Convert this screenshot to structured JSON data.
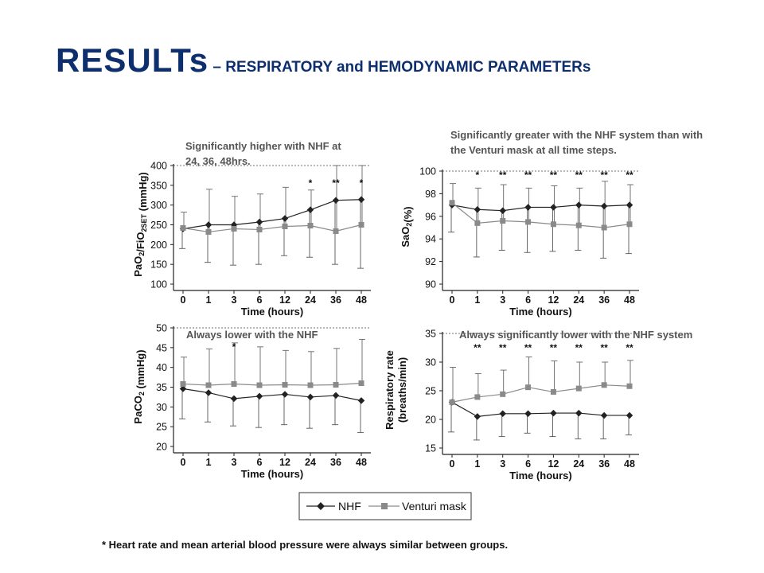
{
  "title": {
    "main": "RESULTs",
    "sub": " – RESPIRATORY and HEMODYNAMIC PARAMETERs"
  },
  "legend": {
    "nhf": "NHF",
    "venturi": "Venturi mask"
  },
  "footnote": "* Heart rate and mean arterial blood pressure were always similar between groups.",
  "colors": {
    "nhf": "#222222",
    "venturi": "#8a8a8a",
    "title": "#0d2f6e"
  },
  "chart_data": [
    {
      "type": "line",
      "ylabel_main": "PaO",
      "ylabel_sub1": "2",
      "ylabel_mid": "/FiO",
      "ylabel_sub2": "2SET",
      "ylabel_end": " (mmHg)",
      "xlabel": "Time (hours)",
      "categories": [
        "0",
        "1",
        "3",
        "6",
        "12",
        "24",
        "36",
        "48"
      ],
      "ylim": [
        100,
        400
      ],
      "yticks": [
        "100",
        "150",
        "200",
        "250",
        "300",
        "350",
        "400"
      ],
      "note_lines": [
        "Significantly higher with NHF at",
        "24, 36, 48hrs."
      ],
      "significance": [
        "",
        "",
        "",
        "",
        "",
        "*",
        "**",
        "*"
      ],
      "series": [
        {
          "name": "NHF",
          "values": [
            240,
            250,
            250,
            257,
            266,
            288,
            312,
            314
          ],
          "upper": [
            282,
            340,
            322,
            328,
            345,
            338,
            400,
            400
          ],
          "lower": [
            190,
            155,
            148,
            150,
            172,
            168,
            150,
            140
          ]
        },
        {
          "name": "Venturi mask",
          "values": [
            242,
            232,
            240,
            238,
            246,
            248,
            234,
            250
          ],
          "upper": [
            282,
            340,
            322,
            328,
            345,
            338,
            400,
            400
          ],
          "lower": [
            190,
            155,
            148,
            150,
            172,
            168,
            150,
            140
          ]
        }
      ]
    },
    {
      "type": "line",
      "ylabel_main": "SaO",
      "ylabel_sub1": "2",
      "ylabel_mid": "",
      "ylabel_sub2": "",
      "ylabel_end": "(%)",
      "xlabel": "Time (hours)",
      "categories": [
        "0",
        "1",
        "3",
        "6",
        "12",
        "24",
        "36",
        "48"
      ],
      "ylim": [
        90,
        100
      ],
      "yticks": [
        "90",
        "92",
        "94",
        "96",
        "98",
        "100"
      ],
      "note_lines": [
        "Significantly greater with the NHF system than with",
        "the Venturi mask at all time steps."
      ],
      "significance": [
        "",
        "*",
        "**",
        "**",
        "**",
        "**",
        "**",
        "**"
      ],
      "series": [
        {
          "name": "NHF",
          "values": [
            97.0,
            96.6,
            96.5,
            96.8,
            96.8,
            97.0,
            96.9,
            97.0
          ],
          "upper": [
            98.9,
            98.5,
            98.8,
            98.5,
            98.7,
            98.5,
            99.1,
            98.8
          ],
          "lower": [
            94.6,
            92.4,
            93.0,
            92.8,
            92.9,
            93.0,
            92.3,
            92.7
          ]
        },
        {
          "name": "Venturi mask",
          "values": [
            97.2,
            95.4,
            95.6,
            95.5,
            95.3,
            95.2,
            95.0,
            95.3
          ],
          "upper": [
            98.9,
            98.5,
            98.8,
            98.5,
            98.7,
            98.5,
            99.1,
            98.8
          ],
          "lower": [
            94.6,
            92.4,
            93.0,
            92.8,
            92.9,
            93.0,
            92.3,
            92.7
          ]
        }
      ]
    },
    {
      "type": "line",
      "ylabel_main": "PaCO",
      "ylabel_sub1": "2",
      "ylabel_mid": "",
      "ylabel_sub2": "",
      "ylabel_end": " (mmHg)",
      "xlabel": "Time (hours)",
      "categories": [
        "0",
        "1",
        "3",
        "6",
        "12",
        "24",
        "36",
        "48"
      ],
      "ylim": [
        20,
        50
      ],
      "yticks": [
        "20",
        "25",
        "30",
        "35",
        "40",
        "45",
        "50"
      ],
      "note_lines": [
        "Always lower with the NHF"
      ],
      "significance": [
        "",
        "",
        "*",
        "",
        "",
        "",
        "",
        ""
      ],
      "series": [
        {
          "name": "NHF",
          "values": [
            34.6,
            33.6,
            32.1,
            32.7,
            33.2,
            32.5,
            32.9,
            31.6
          ],
          "upper": [
            42.6,
            44.7,
            46.2,
            45.2,
            44.3,
            44.0,
            44.8,
            47.1
          ],
          "lower": [
            27.0,
            26.2,
            25.2,
            24.8,
            25.5,
            24.6,
            25.5,
            23.5
          ]
        },
        {
          "name": "Venturi mask",
          "values": [
            35.8,
            35.5,
            35.8,
            35.5,
            35.6,
            35.5,
            35.6,
            36.0
          ],
          "upper": [
            42.6,
            44.7,
            46.2,
            45.2,
            44.3,
            44.0,
            44.8,
            47.1
          ],
          "lower": [
            27.0,
            26.2,
            25.2,
            24.8,
            25.5,
            24.6,
            25.5,
            23.5
          ]
        }
      ]
    },
    {
      "type": "line",
      "ylabel_main": "Respiratory rate",
      "ylabel_line2": "(breaths/min)",
      "ylabel_sub1": "",
      "ylabel_mid": "",
      "ylabel_sub2": "",
      "ylabel_end": "",
      "xlabel": "Time (hours)",
      "categories": [
        "0",
        "1",
        "3",
        "6",
        "12",
        "24",
        "36",
        "48"
      ],
      "ylim": [
        15,
        35
      ],
      "yticks": [
        "15",
        "20",
        "25",
        "30",
        "35"
      ],
      "note_lines": [
        "Always significantly lower with the NHF system"
      ],
      "significance": [
        "",
        "**",
        "**",
        "**",
        "**",
        "**",
        "**",
        "**"
      ],
      "series": [
        {
          "name": "NHF",
          "values": [
            23.0,
            20.5,
            21.0,
            21.0,
            21.1,
            21.1,
            20.7,
            20.7
          ],
          "upper": [
            29.1,
            28.0,
            28.6,
            30.9,
            30.2,
            30.0,
            30.0,
            30.3
          ],
          "lower": [
            17.8,
            16.4,
            17.0,
            17.6,
            17.0,
            16.6,
            16.6,
            17.3
          ]
        },
        {
          "name": "Venturi mask",
          "values": [
            23.0,
            23.9,
            24.4,
            25.6,
            24.8,
            25.4,
            26.0,
            25.8
          ],
          "upper": [
            29.1,
            28.0,
            28.6,
            30.9,
            30.2,
            30.0,
            30.0,
            30.3
          ],
          "lower": [
            17.8,
            16.4,
            17.0,
            17.6,
            17.0,
            16.6,
            16.6,
            17.3
          ]
        }
      ]
    }
  ]
}
